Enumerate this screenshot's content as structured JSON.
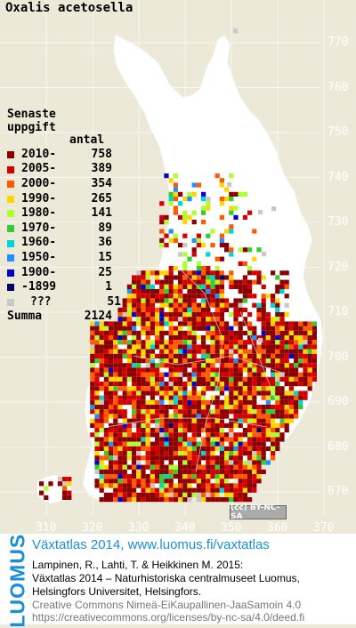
{
  "species": "Oxalis acetosella",
  "legend": {
    "heading_line1": "Senaste",
    "heading_line2": "uppgift",
    "count_heading": "antal",
    "rows": [
      {
        "label": "2010-",
        "count": "758",
        "color": "#8b0000"
      },
      {
        "label": "2005-",
        "count": "389",
        "color": "#d40000"
      },
      {
        "label": "2000-",
        "count": "354",
        "color": "#ff5a00"
      },
      {
        "label": "1990-",
        "count": "265",
        "color": "#ffd700"
      },
      {
        "label": "1980-",
        "count": "141",
        "color": "#adff2f"
      },
      {
        "label": "1970-",
        "count": "89",
        "color": "#32cd32"
      },
      {
        "label": "1960-",
        "count": "36",
        "color": "#00d5d5"
      },
      {
        "label": "1950-",
        "count": "15",
        "color": "#1e90ff"
      },
      {
        "label": "1900-",
        "count": "25",
        "color": "#0000cd"
      },
      {
        "label": "-1899",
        "count": "1",
        "color": "#00006a"
      },
      {
        "label": "???",
        "count": "51",
        "color": "#c8c8c8"
      }
    ],
    "sum_label": "Summa",
    "sum_count": "2124"
  },
  "y_ticks": [
    "770",
    "760",
    "750",
    "740",
    "730",
    "720",
    "710",
    "700",
    "690",
    "680",
    "670"
  ],
  "x_ticks": [
    "310",
    "320",
    "330",
    "340",
    "350",
    "360",
    "370"
  ],
  "license_badge": "(cc) BY-NC-SA",
  "footer": {
    "brand": "LUOMUS",
    "title": "Växtatlas 2014, www.luomus.fi/vaxtatlas",
    "line1": "Lampinen, R., Lahti, T. & Heikkinen M. 2015:",
    "line2": "Växtatlas 2014 – Naturhistoriska centralmuseet Luomus,",
    "line3": "Helsingfors Universitet, Helsingfors.",
    "cc1": "Creative Commons Nimeä-EiKaupallinen-JaaSamoin 4.0",
    "cc2": "https://creativecommons.org/licenses/by-nc-sa/4.0/deed.fi"
  }
}
